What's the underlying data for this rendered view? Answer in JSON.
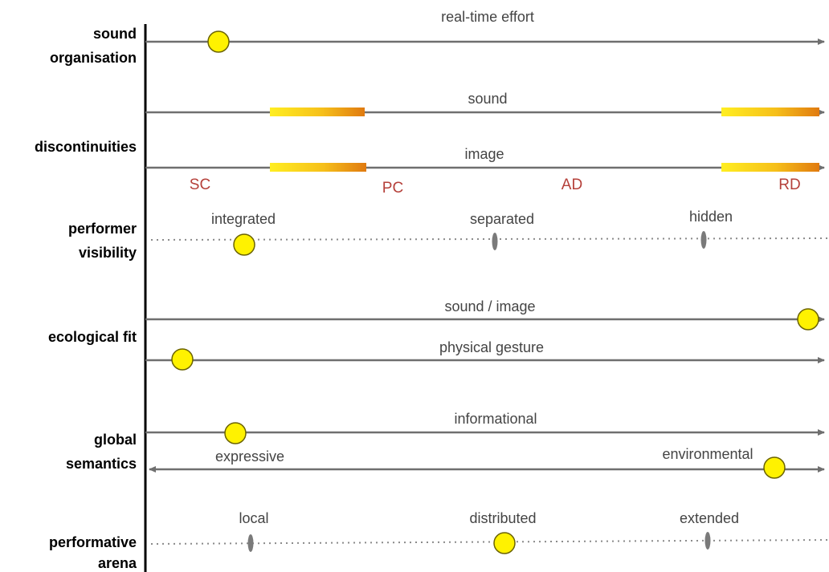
{
  "categories": {
    "sound_organisation": [
      "sound",
      "organisation"
    ],
    "discontinuities": "discontinuities",
    "performer_visibility": [
      "performer",
      "visibility"
    ],
    "ecological_fit": "ecological fit",
    "global_semantics": [
      "global",
      "semantics"
    ],
    "performative_arena": [
      "performative",
      "arena"
    ]
  },
  "axes": {
    "real_time_effort": "real-time effort",
    "sound": "sound",
    "image": "image",
    "sound_image": "sound / image",
    "physical_gesture": "physical gesture",
    "informational": "informational"
  },
  "discontinuity_markers": [
    "SC",
    "PC",
    "AD",
    "RD"
  ],
  "visibility_levels": [
    "integrated",
    "separated",
    "hidden"
  ],
  "semantics_poles": [
    "expressive",
    "environmental"
  ],
  "arena_levels": [
    "local",
    "distributed",
    "extended"
  ],
  "colors": {
    "knob": "#fff200",
    "axis": "#6f6f6f",
    "marker_text": "#b5403a",
    "bar_start": "#ffe81a",
    "bar_end": "#e07a10"
  }
}
